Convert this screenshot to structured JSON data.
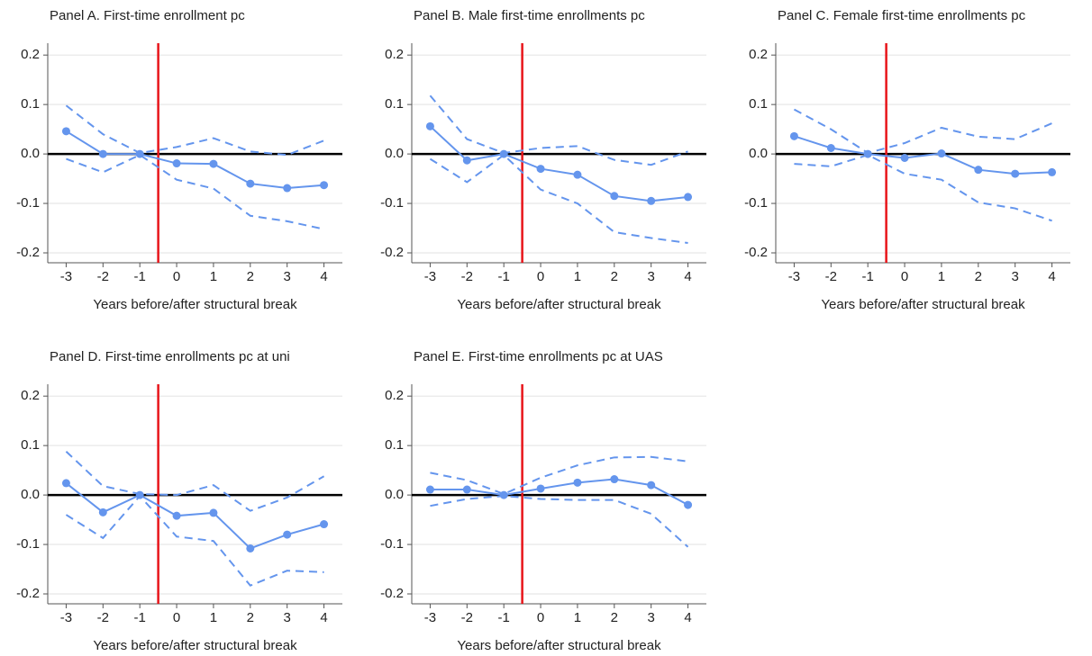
{
  "chart_data": [
    {
      "type": "line",
      "title": "Panel A. First-time enrollment pc",
      "xlabel": "Years before/after structural break",
      "x": [
        -3,
        -2,
        -1,
        0,
        1,
        2,
        3,
        4
      ],
      "xlim": [
        -3.5,
        4.5
      ],
      "xticks": [
        -3,
        -2,
        -1,
        0,
        1,
        2,
        3,
        4
      ],
      "ylim": [
        -0.22,
        0.224
      ],
      "yticks": [
        0.2,
        0.1,
        {
          "value": 0,
          "label": "0.0"
        },
        -0.1,
        -0.2
      ],
      "grid": true,
      "hline": 0,
      "vline": -0.5,
      "vline_color": "#e8141a",
      "series": [
        {
          "color": "#6495ed",
          "dashed": false,
          "markers": true,
          "values": [
            0.046,
            0,
            0,
            -0.019,
            -0.02,
            -0.06,
            -0.069,
            -0.063
          ]
        },
        {
          "color": "#6495ed",
          "dashed": true,
          "markers": false,
          "values": [
            0.098,
            0.04,
            0.002,
            0.014,
            0.032,
            0.005,
            -0.002,
            0.027
          ]
        },
        {
          "color": "#6495ed",
          "dashed": true,
          "markers": false,
          "values": [
            -0.01,
            -0.037,
            -0.002,
            -0.052,
            -0.07,
            -0.125,
            -0.136,
            -0.152
          ]
        }
      ]
    },
    {
      "type": "line",
      "title": "Panel B. Male first-time enrollments pc",
      "xlabel": "Years before/after structural break",
      "x": [
        -3,
        -2,
        -1,
        0,
        1,
        2,
        3,
        4
      ],
      "xlim": [
        -3.5,
        4.5
      ],
      "xticks": [
        -3,
        -2,
        -1,
        0,
        1,
        2,
        3,
        4
      ],
      "ylim": [
        -0.22,
        0.224
      ],
      "yticks": [
        0.2,
        0.1,
        {
          "value": 0,
          "label": "0.0"
        },
        -0.1,
        -0.2
      ],
      "grid": true,
      "hline": 0,
      "vline": -0.5,
      "vline_color": "#e8141a",
      "series": [
        {
          "color": "#6495ed",
          "dashed": false,
          "markers": true,
          "values": [
            0.056,
            -0.013,
            0,
            -0.03,
            -0.042,
            -0.085,
            -0.095,
            -0.087
          ]
        },
        {
          "color": "#6495ed",
          "dashed": true,
          "markers": false,
          "values": [
            0.118,
            0.03,
            0.002,
            0.012,
            0.016,
            -0.012,
            -0.022,
            0.005
          ]
        },
        {
          "color": "#6495ed",
          "dashed": true,
          "markers": false,
          "values": [
            -0.01,
            -0.057,
            -0.002,
            -0.072,
            -0.1,
            -0.158,
            -0.17,
            -0.18
          ]
        }
      ]
    },
    {
      "type": "line",
      "title": "Panel C. Female first-time enrollments pc",
      "xlabel": "Years before/after structural break",
      "x": [
        -3,
        -2,
        -1,
        0,
        1,
        2,
        3,
        4
      ],
      "xlim": [
        -3.5,
        4.5
      ],
      "xticks": [
        -3,
        -2,
        -1,
        0,
        1,
        2,
        3,
        4
      ],
      "ylim": [
        -0.22,
        0.224
      ],
      "yticks": [
        0.2,
        0.1,
        {
          "value": 0,
          "label": "0.0"
        },
        -0.1,
        -0.2
      ],
      "grid": true,
      "hline": 0,
      "vline": -0.5,
      "vline_color": "#e8141a",
      "series": [
        {
          "color": "#6495ed",
          "dashed": false,
          "markers": true,
          "values": [
            0.036,
            0.012,
            0,
            -0.008,
            0.001,
            -0.032,
            -0.04,
            -0.037
          ]
        },
        {
          "color": "#6495ed",
          "dashed": true,
          "markers": false,
          "values": [
            0.09,
            0.05,
            0.002,
            0.022,
            0.053,
            0.035,
            0.03,
            0.062
          ]
        },
        {
          "color": "#6495ed",
          "dashed": true,
          "markers": false,
          "values": [
            -0.02,
            -0.025,
            -0.002,
            -0.04,
            -0.052,
            -0.098,
            -0.11,
            -0.135
          ]
        }
      ]
    },
    {
      "type": "line",
      "title": "Panel D. First-time enrollments pc at uni",
      "xlabel": "Years before/after structural break",
      "x": [
        -3,
        -2,
        -1,
        0,
        1,
        2,
        3,
        4
      ],
      "xlim": [
        -3.5,
        4.5
      ],
      "xticks": [
        -3,
        -2,
        -1,
        0,
        1,
        2,
        3,
        4
      ],
      "ylim": [
        -0.22,
        0.224
      ],
      "yticks": [
        0.2,
        0.1,
        {
          "value": 0,
          "label": "0.0"
        },
        -0.1,
        -0.2
      ],
      "grid": true,
      "hline": 0,
      "vline": -0.5,
      "vline_color": "#e8141a",
      "series": [
        {
          "color": "#6495ed",
          "dashed": false,
          "markers": true,
          "values": [
            0.024,
            -0.035,
            0,
            -0.042,
            -0.036,
            -0.108,
            -0.08,
            -0.059
          ]
        },
        {
          "color": "#6495ed",
          "dashed": true,
          "markers": false,
          "values": [
            0.088,
            0.018,
            0.002,
            0.0,
            0.02,
            -0.032,
            -0.005,
            0.038
          ]
        },
        {
          "color": "#6495ed",
          "dashed": true,
          "markers": false,
          "values": [
            -0.04,
            -0.087,
            -0.002,
            -0.084,
            -0.093,
            -0.183,
            -0.153,
            -0.156
          ]
        }
      ]
    },
    {
      "type": "line",
      "title": "Panel E. First-time enrollments pc at UAS",
      "xlabel": "Years before/after structural break",
      "x": [
        -3,
        -2,
        -1,
        0,
        1,
        2,
        3,
        4
      ],
      "xlim": [
        -3.5,
        4.5
      ],
      "xticks": [
        -3,
        -2,
        -1,
        0,
        1,
        2,
        3,
        4
      ],
      "ylim": [
        -0.22,
        0.224
      ],
      "yticks": [
        0.2,
        0.1,
        {
          "value": 0,
          "label": "0.0"
        },
        -0.1,
        -0.2
      ],
      "grid": true,
      "hline": 0,
      "vline": -0.5,
      "vline_color": "#e8141a",
      "series": [
        {
          "color": "#6495ed",
          "dashed": false,
          "markers": true,
          "values": [
            0.011,
            0.011,
            0,
            0.013,
            0.025,
            0.032,
            0.02,
            -0.02
          ]
        },
        {
          "color": "#6495ed",
          "dashed": true,
          "markers": false,
          "values": [
            0.045,
            0.03,
            0.002,
            0.035,
            0.06,
            0.076,
            0.077,
            0.068
          ]
        },
        {
          "color": "#6495ed",
          "dashed": true,
          "markers": false,
          "values": [
            -0.022,
            -0.008,
            -0.002,
            -0.008,
            -0.01,
            -0.01,
            -0.038,
            -0.105
          ]
        }
      ]
    }
  ]
}
